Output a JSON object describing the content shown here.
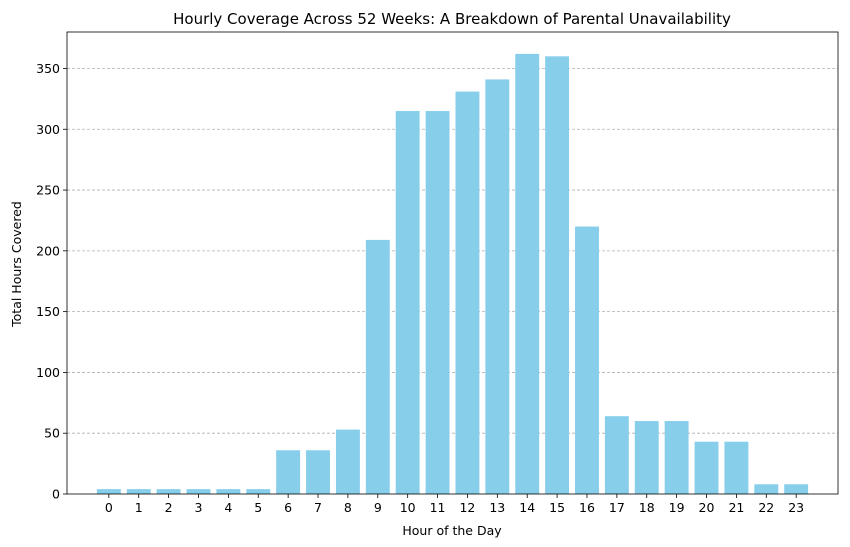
{
  "chart_data": {
    "type": "bar",
    "title": "Hourly Coverage Across 52 Weeks: A Breakdown of Parental Unavailability",
    "xlabel": "Hour of the Day",
    "ylabel": "Total Hours Covered",
    "categories": [
      "0",
      "1",
      "2",
      "3",
      "4",
      "5",
      "6",
      "7",
      "8",
      "9",
      "10",
      "11",
      "12",
      "13",
      "14",
      "15",
      "16",
      "17",
      "18",
      "19",
      "20",
      "21",
      "22",
      "23"
    ],
    "values": [
      4,
      4,
      4,
      4,
      4,
      4,
      36,
      36,
      53,
      209,
      315,
      315,
      331,
      341,
      362,
      360,
      220,
      64,
      60,
      60,
      43,
      43,
      8,
      8
    ],
    "ylim": [
      0,
      380
    ],
    "yticks": [
      0,
      50,
      100,
      150,
      200,
      250,
      300,
      350
    ],
    "grid": "y-dashed",
    "bar_color": "#87ceeb",
    "grid_color": "#b0b0b0"
  }
}
